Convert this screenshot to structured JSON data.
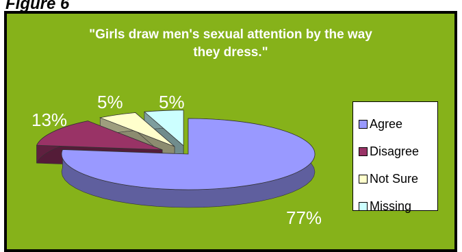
{
  "figure_label": "Figure 6",
  "chart_data": {
    "type": "pie",
    "title": [
      "\"Girls draw men's sexual attention by the way",
      "they dress.\""
    ],
    "categories": [
      "Agree",
      "Disagree",
      "Not Sure",
      "Missing"
    ],
    "values": [
      77,
      13,
      5,
      5
    ],
    "data_labels": [
      "77%",
      "13%",
      "5%",
      "5%"
    ],
    "colors": [
      "#9999ff",
      "#993366",
      "#ffffcc",
      "#ccffff"
    ],
    "exploded": true,
    "three_d": true,
    "legend_position": "right"
  }
}
